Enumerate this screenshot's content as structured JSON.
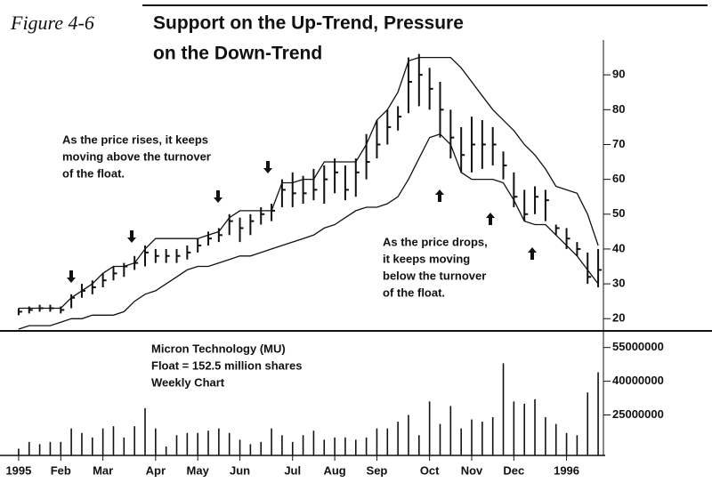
{
  "chart_data": {
    "type": "ohlc",
    "figure_label": "Figure 4-6",
    "title_lines": [
      "Support on the Up-Trend, Pressure",
      "on the Down-Trend"
    ],
    "annotations": [
      [
        "As the price rises, it keeps",
        "moving above the turnover",
        "of the float."
      ],
      [
        "As the price drops,",
        "it keeps moving",
        "below the turnover",
        "of the float."
      ],
      [
        "Micron Technology (MU)",
        "Float = 152.5 million shares",
        "Weekly Chart"
      ]
    ],
    "categories": [
      "1995",
      null,
      null,
      null,
      "Feb",
      null,
      null,
      null,
      "Mar",
      null,
      null,
      null,
      null,
      "Apr",
      null,
      null,
      null,
      "May",
      null,
      null,
      null,
      "Jun",
      null,
      null,
      null,
      null,
      "Jul",
      null,
      null,
      null,
      "Aug",
      null,
      null,
      null,
      "Sep",
      null,
      null,
      null,
      null,
      "Oct",
      null,
      null,
      null,
      "Nov",
      null,
      null,
      null,
      "Dec",
      null,
      null,
      null,
      null,
      "1996",
      null,
      null,
      null
    ],
    "high": [
      23,
      23.5,
      24,
      24,
      23.5,
      27,
      30,
      31,
      33,
      35,
      36,
      38,
      41,
      40,
      40,
      40,
      41,
      43,
      45,
      46,
      50,
      49,
      50,
      52,
      53,
      60,
      62,
      61,
      63,
      64,
      66,
      64,
      66,
      73,
      77,
      80,
      81,
      95,
      96,
      92,
      88,
      80,
      75,
      78,
      77,
      75,
      68,
      62,
      57,
      58,
      57,
      47,
      46,
      42,
      39,
      40
    ],
    "low": [
      21,
      21.5,
      22,
      22,
      21.5,
      23,
      26,
      27,
      29,
      31,
      32,
      34,
      35,
      36,
      36,
      36,
      37,
      39,
      41,
      42,
      44,
      42,
      44,
      47,
      48,
      52,
      52,
      53,
      54,
      53,
      56,
      54,
      55,
      60,
      66,
      70,
      74,
      79,
      81,
      80,
      72,
      66,
      62,
      62,
      63,
      64,
      60,
      52,
      48,
      50,
      48,
      44,
      40,
      38,
      30,
      29
    ],
    "close": [
      22,
      22.5,
      23,
      23,
      22.5,
      26,
      28,
      29,
      31,
      33,
      35,
      36,
      39,
      38,
      38,
      38,
      39,
      41,
      43,
      44,
      48,
      46,
      48,
      50,
      51,
      57,
      56,
      56,
      57,
      60,
      62,
      57,
      62,
      65,
      70,
      75,
      78,
      88,
      90,
      86,
      80,
      72,
      67,
      70,
      70,
      70,
      64,
      55,
      50,
      55,
      54,
      46,
      43,
      40,
      32,
      34
    ],
    "color": "#111111",
    "lines": [
      {
        "color": "#111111",
        "values": [
          23,
          23,
          23,
          23,
          23,
          26,
          28,
          30,
          33,
          35,
          35,
          36,
          40,
          43,
          43,
          43,
          43,
          43,
          44,
          45,
          49,
          51,
          51,
          51,
          51,
          59,
          59,
          60,
          60,
          65,
          65,
          65,
          65,
          70,
          77,
          80,
          85,
          94,
          95,
          95,
          95,
          95,
          92,
          88,
          84,
          80,
          77,
          74,
          70,
          67,
          63,
          58,
          57,
          56,
          50,
          41
        ]
      },
      {
        "color": "#111111",
        "values": [
          17,
          18,
          18,
          18,
          19,
          20,
          20,
          21,
          21,
          21,
          22,
          25,
          27,
          28,
          30,
          32,
          34,
          35,
          35,
          36,
          37,
          38,
          38,
          39,
          40,
          41,
          42,
          43,
          44,
          46,
          47,
          49,
          51,
          52,
          52,
          53,
          55,
          60,
          66,
          72,
          73,
          70,
          62,
          60,
          60,
          60,
          59,
          54,
          48,
          47,
          47,
          44,
          41,
          38,
          34,
          30
        ]
      }
    ],
    "ylim": [
      17,
      100
    ],
    "yticks": [
      20,
      30,
      40,
      50,
      60,
      70,
      80,
      90
    ],
    "volume": {
      "color": "#111111",
      "values": [
        10000000,
        13000000,
        12000000,
        13000000,
        13000000,
        19000000,
        17000000,
        15000000,
        19000000,
        20000000,
        15000000,
        20000000,
        28000000,
        19000000,
        11000000,
        16000000,
        17000000,
        17000000,
        18000000,
        19000000,
        17000000,
        14000000,
        12000000,
        13000000,
        19000000,
        16000000,
        13000000,
        16000000,
        18000000,
        14000000,
        15000000,
        15000000,
        14000000,
        15000000,
        19000000,
        19000000,
        22000000,
        25000000,
        16000000,
        31000000,
        21000000,
        29000000,
        19000000,
        23000000,
        22000000,
        24000000,
        48000000,
        31000000,
        30000000,
        32000000,
        24000000,
        21000000,
        17000000,
        16000000,
        35000000,
        44000000
      ],
      "ylim": [
        7000000,
        62000000
      ],
      "yticks": [
        25000000,
        40000000,
        55000000
      ]
    }
  }
}
